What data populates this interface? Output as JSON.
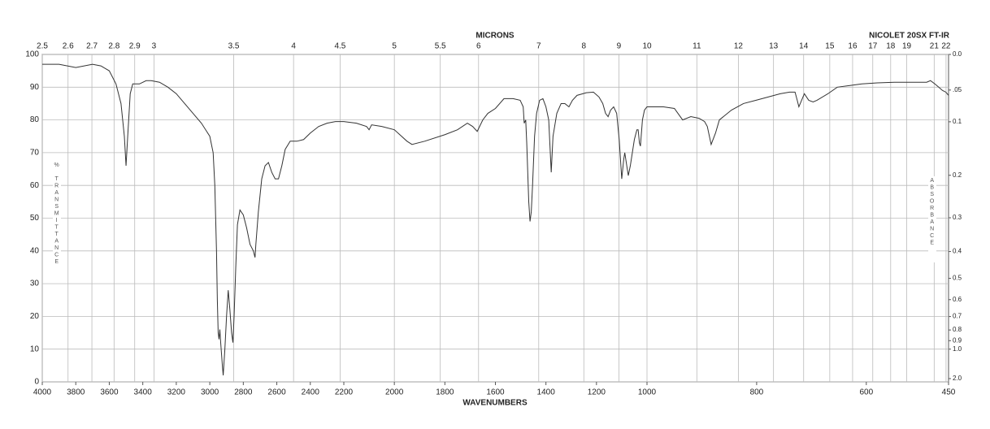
{
  "chart_data": {
    "type": "line",
    "title": "NICOLET 20SX FT-IR",
    "x2_label": "MICRONS",
    "xlabel": "WAVENUMBERS",
    "ylabel": "% TRANSMITTANCE",
    "y2label": "ABSORBANCE",
    "color": "#333333",
    "xlim": [
      4000,
      450
    ],
    "x_scale_breaks": [
      2200,
      1000
    ],
    "xticks": [
      4000,
      3800,
      3600,
      3400,
      3200,
      3000,
      2800,
      2600,
      2400,
      2200,
      2000,
      1800,
      1600,
      1400,
      1200,
      1000,
      800,
      600,
      450
    ],
    "micron_ticks": [
      2.5,
      2.6,
      2.7,
      2.8,
      2.9,
      3,
      3.5,
      4,
      4.5,
      5,
      5.5,
      6,
      7,
      8,
      9,
      10,
      11,
      12,
      13,
      14,
      15,
      16,
      17,
      18,
      19,
      21,
      22
    ],
    "ylim": [
      0,
      100
    ],
    "yticks": [
      0,
      10,
      20,
      30,
      40,
      50,
      60,
      70,
      80,
      90,
      100
    ],
    "y2ticks": [
      {
        "value": 0,
        "label": "0.0"
      },
      {
        "value": 0.05,
        "label": ".05"
      },
      0.1,
      0.2,
      0.3,
      0.4,
      0.5,
      0.6,
      0.7,
      0.8,
      0.9,
      {
        "value": 1,
        "label": "1.0"
      },
      {
        "value": 2,
        "label": "2.0"
      }
    ],
    "grid": true,
    "x": [
      4000,
      3900,
      3800,
      3700,
      3650,
      3600,
      3560,
      3530,
      3510,
      3500,
      3490,
      3475,
      3460,
      3420,
      3380,
      3350,
      3300,
      3250,
      3200,
      3150,
      3100,
      3050,
      3000,
      2980,
      2970,
      2960,
      2955,
      2950,
      2945,
      2940,
      2935,
      2925,
      2920,
      2910,
      2900,
      2890,
      2880,
      2870,
      2862,
      2855,
      2845,
      2835,
      2820,
      2800,
      2780,
      2760,
      2740,
      2730,
      2725,
      2710,
      2690,
      2670,
      2650,
      2630,
      2610,
      2590,
      2570,
      2550,
      2520,
      2480,
      2440,
      2400,
      2350,
      2300,
      2250,
      2200,
      2150,
      2110,
      2100,
      2090,
      2050,
      2000,
      1950,
      1930,
      1880,
      1800,
      1750,
      1711,
      1690,
      1672,
      1650,
      1630,
      1600,
      1566,
      1530,
      1502,
      1490,
      1486,
      1480,
      1476,
      1468,
      1463,
      1458,
      1453,
      1445,
      1437,
      1425,
      1412,
      1400,
      1389,
      1379,
      1372,
      1357,
      1340,
      1325,
      1309,
      1295,
      1277,
      1240,
      1212,
      1190,
      1175,
      1164,
      1154,
      1144,
      1132,
      1120,
      1110,
      1100,
      1092,
      1088,
      1080,
      1074,
      1066,
      1050,
      1040,
      1035,
      1030,
      1026,
      1018,
      1010,
      1000,
      970,
      950,
      935,
      920,
      905,
      895,
      890,
      883,
      875,
      868,
      846,
      824,
      801,
      757,
      740,
      730,
      726,
      723,
      718,
      713,
      705,
      697,
      690,
      670,
      653,
      630,
      608,
      580,
      549,
      520,
      490,
      483,
      475,
      468,
      461,
      455,
      450
    ],
    "values": [
      97,
      97,
      96,
      97,
      96.5,
      95,
      91,
      85,
      75,
      66,
      75,
      88,
      91,
      91,
      92,
      92,
      91.5,
      90,
      88,
      85,
      82,
      79,
      75,
      70,
      60,
      40,
      25,
      15,
      13,
      16,
      12,
      5,
      2,
      10,
      20,
      28,
      22,
      15,
      12,
      20,
      35,
      48,
      52.5,
      51,
      47,
      42,
      40,
      38,
      42,
      52,
      62,
      66,
      67,
      64,
      62,
      62,
      66,
      71,
      73.5,
      73.5,
      74,
      76,
      78,
      79,
      79.5,
      79.5,
      79,
      78,
      77,
      78.5,
      78,
      77,
      73.5,
      72.5,
      73.5,
      75.5,
      77,
      79,
      78,
      76.5,
      80,
      82,
      83.5,
      86.5,
      86.5,
      86,
      84,
      79,
      80,
      73,
      55,
      49,
      52,
      60,
      75,
      82,
      86,
      86.5,
      84,
      80,
      64,
      75,
      82,
      85,
      85,
      84,
      86,
      87.5,
      88.3,
      88.5,
      87,
      85,
      82,
      81,
      83,
      84,
      82,
      74,
      62,
      68,
      70,
      66,
      63,
      66,
      74,
      77,
      77,
      73,
      72,
      80,
      83,
      84,
      84,
      83.5,
      80,
      81,
      80.5,
      79.5,
      78,
      72.5,
      76,
      80,
      83,
      85,
      86,
      88,
      88.5,
      88.5,
      86,
      84,
      86,
      88,
      86,
      85.5,
      86,
      88,
      90,
      90.5,
      91,
      91.3,
      91.5,
      91.5,
      91.5,
      92,
      91,
      90,
      89,
      88.5,
      87.5
    ]
  }
}
